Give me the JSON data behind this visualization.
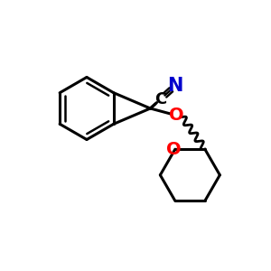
{
  "background_color": "#ffffff",
  "bond_color": "#000000",
  "o_color": "#ff0000",
  "n_color": "#0000cd",
  "bond_width": 2.2,
  "font_size_C": 13,
  "font_size_N": 15,
  "font_size_O": 14,
  "figsize": [
    3.0,
    3.0
  ],
  "dpi": 100,
  "xlim": [
    0,
    10
  ],
  "ylim": [
    0,
    10
  ]
}
